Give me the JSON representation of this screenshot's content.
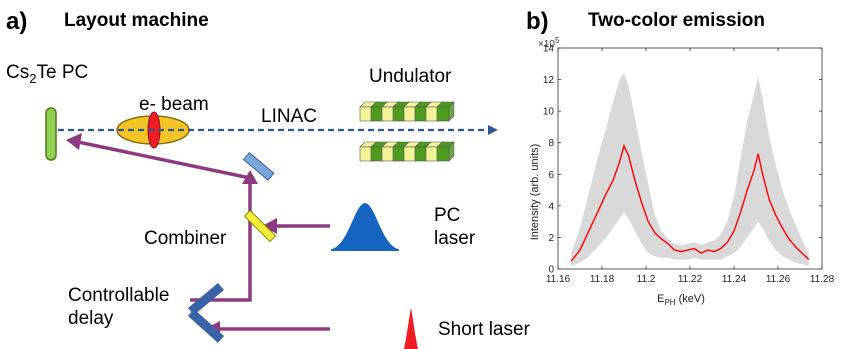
{
  "panel_a": {
    "letter": "a)",
    "title": "Layout machine",
    "labels": {
      "cathode_main": "Cs",
      "cathode_sub": "2",
      "cathode_rest": "Te PC",
      "ebeam": "e- beam",
      "linac": "LINAC",
      "undulator": "Undulator",
      "pc_laser_line1": "PC",
      "pc_laser_line2": "laser",
      "combiner": "Combiner",
      "delay_line1": "Controllable",
      "delay_line2": "delay",
      "short_laser": "Short laser"
    },
    "colors": {
      "beamline": "#2e5597",
      "laser_path": "#8e3a80",
      "cathode": "#92d050",
      "ebeam_ellipse": "#f5c527",
      "ebeam_core": "#ee1c24",
      "undulator_yellow": "#f3f39a",
      "undulator_green": "#4e9a1f",
      "mirror": "#7ba7d8",
      "combiner": "#f6ef3a",
      "delay_mirror": "#3a62a8",
      "pc_pulse": "#1565c0",
      "short_pulse": "#ee1c24"
    }
  },
  "panel_b": {
    "letter": "b)",
    "title": "Two-color emission"
  },
  "chart_data": {
    "type": "line",
    "title": "Two-color emission",
    "xlabel_main": "E",
    "xlabel_sub": "PH",
    "xlabel_rest": " (keV)",
    "ylabel": "Intensity (arb. units)",
    "exponent_label": "×10",
    "exponent_power": "5",
    "xlim": [
      11.16,
      11.28
    ],
    "ylim": [
      0,
      14
    ],
    "xticks": [
      11.16,
      11.18,
      11.2,
      11.22,
      11.24,
      11.26,
      11.28
    ],
    "xtick_labels": [
      "11.16",
      "11.18",
      "11.2",
      "11.22",
      "11.24",
      "11.26",
      "11.28"
    ],
    "yticks": [
      0,
      2,
      4,
      6,
      8,
      10,
      12,
      14
    ],
    "ytick_labels": [
      "0",
      "2",
      "4",
      "6",
      "8",
      "10",
      "12",
      "14"
    ],
    "grid": false,
    "series": [
      {
        "color": "#ff0000",
        "x": [
          11.166,
          11.17,
          11.174,
          11.178,
          11.182,
          11.185,
          11.188,
          11.19,
          11.192,
          11.195,
          11.198,
          11.201,
          11.204,
          11.207,
          11.21,
          11.213,
          11.216,
          11.219,
          11.222,
          11.225,
          11.228,
          11.231,
          11.234,
          11.237,
          11.24,
          11.243,
          11.246,
          11.249,
          11.251,
          11.253,
          11.256,
          11.259,
          11.262,
          11.265,
          11.268,
          11.271,
          11.274
        ],
        "y": [
          0.5,
          1.2,
          2.4,
          3.6,
          4.8,
          5.6,
          6.8,
          7.8,
          7.2,
          5.6,
          4.2,
          3.0,
          2.3,
          1.9,
          1.6,
          1.2,
          1.1,
          1.2,
          1.3,
          1.0,
          1.2,
          1.1,
          1.3,
          1.7,
          2.4,
          3.6,
          5.0,
          6.2,
          7.3,
          6.0,
          4.4,
          3.4,
          2.6,
          1.9,
          1.4,
          1.0,
          0.6
        ]
      }
    ],
    "band": {
      "color": "#d9d9d9",
      "x": [
        11.166,
        11.17,
        11.174,
        11.178,
        11.182,
        11.185,
        11.188,
        11.19,
        11.192,
        11.195,
        11.198,
        11.201,
        11.204,
        11.207,
        11.21,
        11.213,
        11.216,
        11.219,
        11.222,
        11.225,
        11.228,
        11.231,
        11.234,
        11.237,
        11.24,
        11.243,
        11.246,
        11.249,
        11.251,
        11.253,
        11.256,
        11.259,
        11.262,
        11.265,
        11.268,
        11.271,
        11.274
      ],
      "upper": [
        1.0,
        2.6,
        4.8,
        7.0,
        9.0,
        10.6,
        12.0,
        12.4,
        11.6,
        9.6,
        7.4,
        5.4,
        3.4,
        2.4,
        1.9,
        1.6,
        1.5,
        1.6,
        1.7,
        1.5,
        1.7,
        1.8,
        2.2,
        3.0,
        4.6,
        7.0,
        9.4,
        11.0,
        12.2,
        10.8,
        8.4,
        6.6,
        5.0,
        3.8,
        2.8,
        1.8,
        1.0
      ],
      "lower": [
        0.2,
        0.4,
        0.8,
        1.4,
        2.0,
        2.6,
        3.2,
        3.6,
        3.2,
        2.4,
        1.6,
        1.0,
        0.8,
        0.7,
        0.7,
        0.6,
        0.6,
        0.6,
        0.7,
        0.6,
        0.6,
        0.6,
        0.6,
        0.8,
        1.0,
        1.4,
        2.0,
        2.6,
        3.0,
        2.6,
        1.8,
        1.2,
        0.8,
        0.6,
        0.4,
        0.3,
        0.2
      ]
    }
  }
}
